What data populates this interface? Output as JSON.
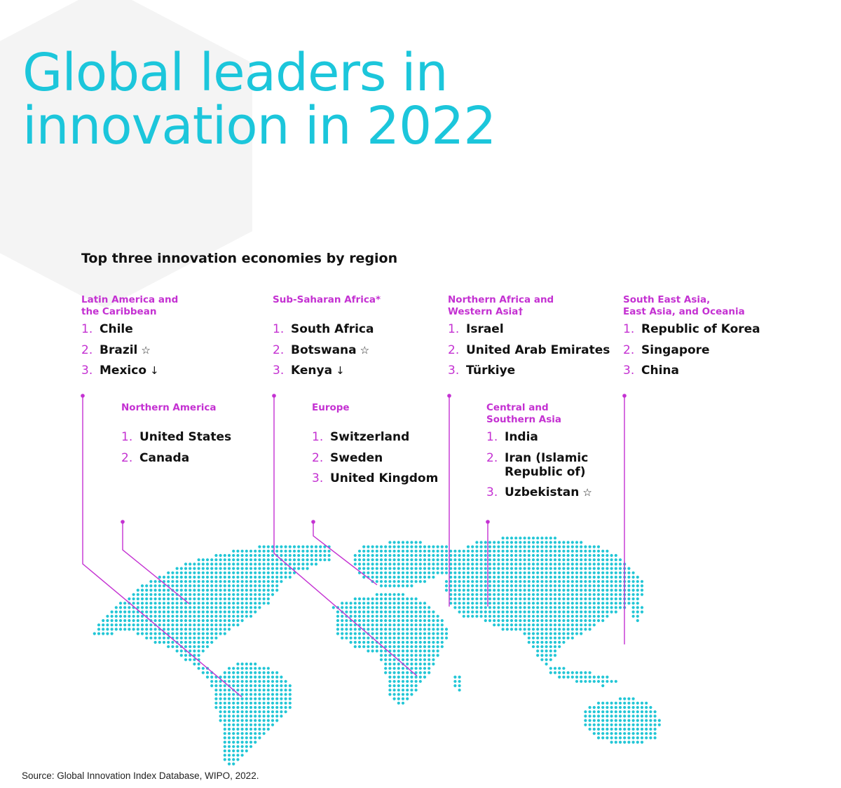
{
  "title": {
    "line1": "Global leaders in",
    "line2": "innovation in 2022"
  },
  "subtitle": "Top three innovation economies by region",
  "colors": {
    "title": "#1cc6db",
    "accent": "#c431d2",
    "dots": "#22c6d6",
    "text": "#111111"
  },
  "regions": {
    "latin_america": {
      "name_line1": "Latin America and",
      "name_line2": "the Caribbean",
      "items": [
        {
          "num": "1.",
          "name": "Chile",
          "mark": ""
        },
        {
          "num": "2.",
          "name": "Brazil",
          "mark": "☆"
        },
        {
          "num": "3.",
          "name": "Mexico",
          "mark": "↓"
        }
      ]
    },
    "sub_saharan_africa": {
      "name_line1": "Sub-Saharan Africa*",
      "name_line2": "",
      "items": [
        {
          "num": "1.",
          "name": "South Africa",
          "mark": ""
        },
        {
          "num": "2.",
          "name": "Botswana",
          "mark": "☆"
        },
        {
          "num": "3.",
          "name": "Kenya",
          "mark": "↓"
        }
      ]
    },
    "northern_africa_western_asia": {
      "name_line1": "Northern Africa and",
      "name_line2": "Western Asia†",
      "items": [
        {
          "num": "1.",
          "name": "Israel",
          "mark": ""
        },
        {
          "num": "2.",
          "name": "United Arab Emirates",
          "mark": ""
        },
        {
          "num": "3.",
          "name": "Türkiye",
          "mark": ""
        }
      ]
    },
    "south_east_asia": {
      "name_line1": "South East Asia,",
      "name_line2": "East Asia, and Oceania",
      "items": [
        {
          "num": "1.",
          "name": "Republic of Korea",
          "mark": ""
        },
        {
          "num": "2.",
          "name": "Singapore",
          "mark": ""
        },
        {
          "num": "3.",
          "name": "China",
          "mark": ""
        }
      ]
    },
    "northern_america": {
      "name_line1": "Northern America",
      "name_line2": "",
      "items": [
        {
          "num": "1.",
          "name": "United States",
          "mark": ""
        },
        {
          "num": "2.",
          "name": "Canada",
          "mark": ""
        }
      ]
    },
    "europe": {
      "name_line1": "Europe",
      "name_line2": "",
      "items": [
        {
          "num": "1.",
          "name": "Switzerland",
          "mark": ""
        },
        {
          "num": "2.",
          "name": "Sweden",
          "mark": ""
        },
        {
          "num": "3.",
          "name": "United Kingdom",
          "mark": ""
        }
      ]
    },
    "central_southern_asia": {
      "name_line1": "Central and",
      "name_line2": "Southern Asia",
      "items": [
        {
          "num": "1.",
          "name": "India",
          "mark": ""
        },
        {
          "num": "2.",
          "name": "Iran (Islamic Republic of)",
          "mark": ""
        },
        {
          "num": "3.",
          "name": "Uzbekistan",
          "mark": "☆"
        }
      ]
    }
  },
  "source": "Source: Global Innovation Index Database, WIPO, 2022."
}
